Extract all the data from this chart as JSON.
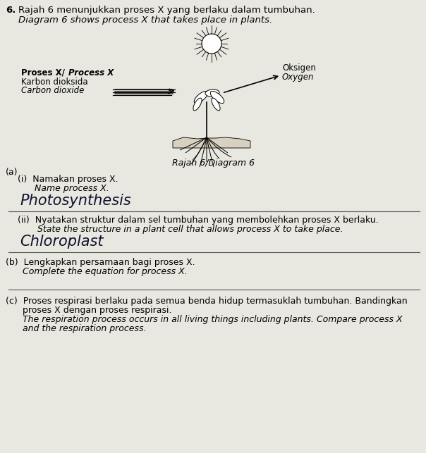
{
  "bg_color": "#c8c8c0",
  "paper_color": "#e8e8e0",
  "question_number": "6.",
  "title_malay": "Rajah 6 menunjukkan proses X yang berlaku dalam tumbuhan.",
  "title_english": "Diagram 6 shows process X that takes place in plants.",
  "diagram_label": "Rajah 6/Diagram 6",
  "process_label_bold": "Proses X/",
  "process_label_italic": "Process X",
  "arrow_label1_malay": "Karbon dioksida",
  "arrow_label1_english": "Carbon dioxide",
  "output_label_malay": "Oksigen",
  "output_label_english": "Oxygen",
  "part_a": "(a)",
  "part_a_i_malay": "(i)  Namakan proses X.",
  "part_a_i_english": "      Name process X.",
  "answer_i": "Photosynthesis",
  "part_a_ii_malay": "(ii)  Nyatakan struktur dalam sel tumbuhan yang membolehkan proses X berlaku.",
  "part_a_ii_english": "       State the structure in a plant cell that allows process X to take place.",
  "answer_ii": "Chloroplast",
  "part_b_malay": "(b)  Lengkapkan persamaan bagi proses X.",
  "part_b_english": "      Complete the equation for process X.",
  "part_c_line1": "(c)  Proses respirasi berlaku pada semua benda hidup termasuklah tumbuhan. Bandingkan",
  "part_c_line2": "      proses X dengan proses respirasi.",
  "part_c_line3": "      The respiration process occurs in all living things including plants. Compare process X",
  "part_c_line4": "      and the respiration process."
}
